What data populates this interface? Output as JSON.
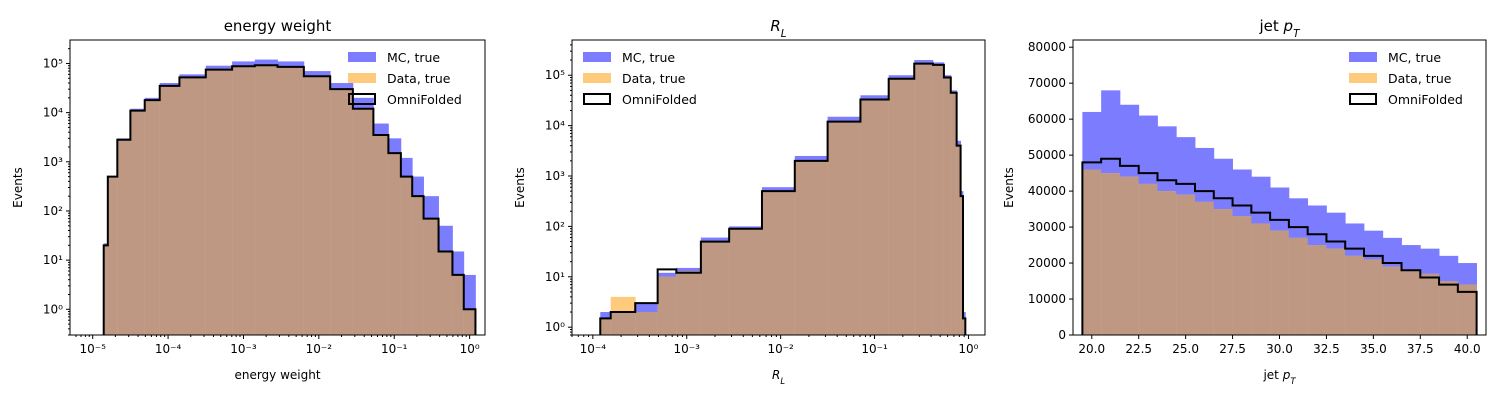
{
  "chart_data": [
    {
      "type": "histogram",
      "title": "energy weight",
      "xlabel": "energy weight",
      "ylabel": "Events",
      "xscale": "log",
      "yscale": "log",
      "xlim": [
        5e-06,
        1.6
      ],
      "ylim": [
        0.3,
        300000
      ],
      "xticks": [
        1e-05,
        0.0001,
        0.001,
        0.01,
        0.1,
        1
      ],
      "xtick_labels": [
        "10⁻⁵",
        "10⁻⁴",
        "10⁻³",
        "10⁻²",
        "10⁻¹",
        "10⁰"
      ],
      "yticks": [
        1,
        10,
        100,
        1000,
        10000,
        100000
      ],
      "ytick_labels": [
        "10⁰",
        "10¹",
        "10²",
        "10³",
        "10⁴",
        "10⁵"
      ],
      "legend_position": "top-right",
      "legend": [
        "MC, true",
        "Data, true",
        "OmniFolded"
      ],
      "series": [
        {
          "name": "MC, true",
          "x": [
            1.4e-05,
            1.8e-05,
            2.5e-05,
            4e-05,
            6e-05,
            0.0001,
            0.0002,
            0.0005,
            0.001,
            0.002,
            0.004,
            0.01,
            0.02,
            0.04,
            0.07,
            0.1,
            0.15,
            0.2,
            0.3,
            0.5,
            0.7,
            1
          ],
          "y": [
            22,
            500,
            3000,
            12000,
            20000,
            40000,
            60000,
            90000,
            110000,
            120000,
            110000,
            70000,
            40000,
            20000,
            6000,
            3000,
            1200,
            500,
            200,
            50,
            15,
            5
          ]
        },
        {
          "name": "Data, true",
          "x": [
            1.4e-05,
            1.8e-05,
            2.5e-05,
            4e-05,
            6e-05,
            0.0001,
            0.0002,
            0.0005,
            0.001,
            0.002,
            0.004,
            0.01,
            0.02,
            0.04,
            0.07,
            0.1,
            0.15,
            0.2,
            0.3,
            0.5,
            0.7,
            1
          ],
          "y": [
            20,
            500,
            2800,
            11000,
            18000,
            35000,
            52000,
            75000,
            88000,
            92000,
            85000,
            55000,
            30000,
            12000,
            3500,
            1500,
            500,
            200,
            70,
            15,
            5,
            1
          ]
        },
        {
          "name": "OmniFolded",
          "x": [
            1.4e-05,
            1.8e-05,
            2.5e-05,
            4e-05,
            6e-05,
            0.0001,
            0.0002,
            0.0005,
            0.001,
            0.002,
            0.004,
            0.01,
            0.02,
            0.04,
            0.07,
            0.1,
            0.15,
            0.2,
            0.3,
            0.5,
            0.7,
            1
          ],
          "y": [
            20,
            500,
            2800,
            11000,
            18000,
            35000,
            52000,
            75000,
            88000,
            92000,
            85000,
            55000,
            30000,
            12000,
            3500,
            1500,
            500,
            200,
            70,
            15,
            5,
            1
          ]
        }
      ]
    },
    {
      "type": "histogram",
      "title": "R_L",
      "xlabel": "R_L",
      "ylabel": "Events",
      "xscale": "log",
      "yscale": "log",
      "xlim": [
        6e-05,
        1.5
      ],
      "ylim": [
        0.7,
        500000
      ],
      "xticks": [
        0.0001,
        0.001,
        0.01,
        0.1,
        1
      ],
      "xtick_labels": [
        "10⁻⁴",
        "10⁻³",
        "10⁻²",
        "10⁻¹",
        "10⁰"
      ],
      "yticks": [
        1,
        10,
        100,
        1000,
        10000,
        100000
      ],
      "ytick_labels": [
        "10⁰",
        "10¹",
        "10²",
        "10³",
        "10⁴",
        "10⁵"
      ],
      "legend_position": "top-left",
      "legend": [
        "MC, true",
        "Data, true",
        "OmniFolded"
      ],
      "series": [
        {
          "name": "MC, true",
          "x": [
            0.00012,
            0.0002,
            0.0004,
            0.0006,
            0.001,
            0.002,
            0.004,
            0.01,
            0.02,
            0.05,
            0.1,
            0.2,
            0.35,
            0.5,
            0.6,
            0.7,
            0.8,
            0.85,
            0.9
          ],
          "y": [
            2,
            2,
            3,
            12,
            15,
            60,
            100,
            600,
            2500,
            15000,
            40000,
            100000,
            200000,
            180000,
            100000,
            50000,
            5000,
            500,
            2
          ]
        },
        {
          "name": "Data, true",
          "x": [
            0.00012,
            0.0002,
            0.0004,
            0.0006,
            0.001,
            0.002,
            0.004,
            0.01,
            0.02,
            0.05,
            0.1,
            0.2,
            0.35,
            0.5,
            0.6,
            0.7,
            0.8,
            0.85,
            0.9
          ],
          "y": [
            1.5,
            4,
            2,
            10,
            13,
            50,
            90,
            500,
            2000,
            12000,
            33000,
            85000,
            170000,
            160000,
            90000,
            45000,
            4000,
            400,
            1.5
          ]
        },
        {
          "name": "OmniFolded",
          "x": [
            0.00012,
            0.0002,
            0.0004,
            0.0006,
            0.001,
            0.002,
            0.004,
            0.01,
            0.02,
            0.05,
            0.1,
            0.2,
            0.35,
            0.5,
            0.6,
            0.7,
            0.8,
            0.85,
            0.9
          ],
          "y": [
            1.5,
            2,
            3,
            14,
            12,
            50,
            90,
            500,
            2000,
            12000,
            33000,
            85000,
            170000,
            160000,
            90000,
            45000,
            4000,
            400,
            1.5
          ]
        }
      ]
    },
    {
      "type": "histogram",
      "title": "jet p_T",
      "xlabel": "jet p_T",
      "ylabel": "Events",
      "xscale": "linear",
      "yscale": "linear",
      "xlim": [
        19,
        41
      ],
      "ylim": [
        0,
        82000
      ],
      "xticks": [
        20,
        22.5,
        25,
        27.5,
        30,
        32.5,
        35,
        37.5,
        40
      ],
      "xtick_labels": [
        "20.0",
        "22.5",
        "25.0",
        "27.5",
        "30.0",
        "32.5",
        "35.0",
        "37.5",
        "40.0"
      ],
      "yticks": [
        0,
        10000,
        20000,
        30000,
        40000,
        50000,
        60000,
        70000,
        80000
      ],
      "ytick_labels": [
        "0",
        "10000",
        "20000",
        "30000",
        "40000",
        "50000",
        "60000",
        "70000",
        "80000"
      ],
      "legend_position": "top-right",
      "legend": [
        "MC, true",
        "Data, true",
        "OmniFolded"
      ],
      "series": [
        {
          "name": "MC, true",
          "x": [
            20,
            21,
            22,
            23,
            24,
            25,
            26,
            27,
            28,
            29,
            30,
            31,
            32,
            33,
            34,
            35,
            36,
            37,
            38,
            39,
            40
          ],
          "y": [
            62000,
            68000,
            64000,
            61000,
            58000,
            55000,
            52000,
            49000,
            46000,
            44000,
            41000,
            38000,
            36000,
            34000,
            31000,
            29000,
            27000,
            25000,
            24000,
            22000,
            20000
          ]
        },
        {
          "name": "Data, true",
          "x": [
            20,
            21,
            22,
            23,
            24,
            25,
            26,
            27,
            28,
            29,
            30,
            31,
            32,
            33,
            34,
            35,
            36,
            37,
            38,
            39,
            40
          ],
          "y": [
            46000,
            45000,
            44000,
            42000,
            40000,
            39000,
            37000,
            35000,
            33000,
            31000,
            29000,
            27000,
            25000,
            24000,
            22000,
            21000,
            19000,
            18000,
            17000,
            15000,
            14000
          ]
        },
        {
          "name": "OmniFolded",
          "x": [
            20,
            21,
            22,
            23,
            24,
            25,
            26,
            27,
            28,
            29,
            30,
            31,
            32,
            33,
            34,
            35,
            36,
            37,
            38,
            39,
            40
          ],
          "y": [
            48000,
            49000,
            47000,
            45000,
            43000,
            42000,
            40000,
            38000,
            36000,
            34000,
            32000,
            30000,
            28000,
            26000,
            24000,
            22000,
            20000,
            18000,
            16000,
            14000,
            12000
          ]
        }
      ]
    }
  ],
  "colors": {
    "mc": "#7c7cff",
    "data": "#fdcb7b",
    "overlap": "#be9882",
    "omnifold": "#000000"
  }
}
